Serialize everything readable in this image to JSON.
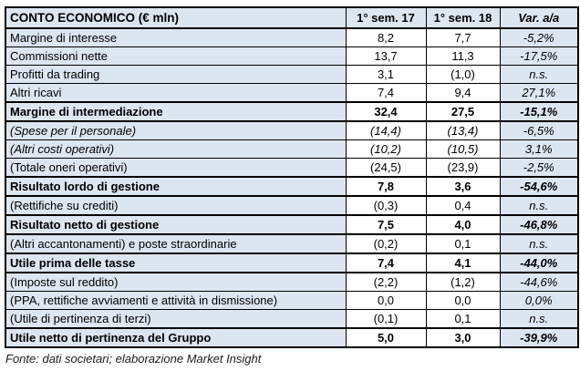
{
  "chart_data": {
    "type": "table",
    "title": "CONTO ECONOMICO (€ mln)",
    "columns": [
      "CONTO ECONOMICO (€ mln)",
      "1° sem. 17",
      "1° sem. 18",
      "Var. a/a"
    ],
    "rows": [
      {
        "label": "Margine di interesse",
        "sem17": "8,2",
        "sem18": "7,7",
        "var": "-5,2%",
        "emphasis": "normal"
      },
      {
        "label": "Commissioni nette",
        "sem17": "13,7",
        "sem18": "11,3",
        "var": "-17,5%",
        "emphasis": "normal"
      },
      {
        "label": "Profitti da trading",
        "sem17": "3,1",
        "sem18": "(1,0)",
        "var": "n.s.",
        "emphasis": "normal"
      },
      {
        "label": "Altri ricavi",
        "sem17": "7,4",
        "sem18": "9,4",
        "var": "27,1%",
        "emphasis": "normal"
      },
      {
        "label": "Margine di intermediazione",
        "sem17": "32,4",
        "sem18": "27,5",
        "var": "-15,1%",
        "emphasis": "total"
      },
      {
        "label": "(Spese per il personale)",
        "sem17": "(14,4)",
        "sem18": "(13,4)",
        "var": "-6,5%",
        "emphasis": "italic"
      },
      {
        "label": "(Altri costi operativi)",
        "sem17": "(10,2)",
        "sem18": "(10,5)",
        "var": "3,1%",
        "emphasis": "italic"
      },
      {
        "label": "(Totale oneri operativi)",
        "sem17": "(24,5)",
        "sem18": "(23,9)",
        "var": "-2,5%",
        "emphasis": "normal"
      },
      {
        "label": "Risultato lordo di gestione",
        "sem17": "7,8",
        "sem18": "3,6",
        "var": "-54,6%",
        "emphasis": "total"
      },
      {
        "label": "(Rettifiche su crediti)",
        "sem17": "(0,3)",
        "sem18": "0,4",
        "var": "n.s.",
        "emphasis": "normal"
      },
      {
        "label": "Risultato netto di gestione",
        "sem17": "7,5",
        "sem18": "4,0",
        "var": "-46,8%",
        "emphasis": "total"
      },
      {
        "label": "(Altri accantonamenti) e poste straordinarie",
        "sem17": "(0,2)",
        "sem18": "0,1",
        "var": "n.s.",
        "emphasis": "normal"
      },
      {
        "label": "Utile prima delle tasse",
        "sem17": "7,4",
        "sem18": "4,1",
        "var": "-44,0%",
        "emphasis": "total"
      },
      {
        "label": "(Imposte sul reddito)",
        "sem17": "(2,2)",
        "sem18": "(1,2)",
        "var": "-44,6%",
        "emphasis": "normal"
      },
      {
        "label": "(PPA, rettifiche avviamenti e attività in dismissione)",
        "sem17": "0,0",
        "sem18": "0,0",
        "var": "0,0%",
        "emphasis": "normal"
      },
      {
        "label": "(Utile di pertinenza di terzi)",
        "sem17": "(0,1)",
        "sem18": "0,1",
        "var": "n.s.",
        "emphasis": "normal"
      },
      {
        "label": "Utile netto di pertinenza del Gruppo",
        "sem17": "5,0",
        "sem18": "3,0",
        "var": "-39,9%",
        "emphasis": "total"
      }
    ]
  },
  "footer": {
    "source": "Fonte: dati societari; elaborazione Market Insight"
  },
  "colors": {
    "row_background": "#dce6f1",
    "value_background": "#ffffff",
    "border": "#000000",
    "text": "#000000"
  }
}
